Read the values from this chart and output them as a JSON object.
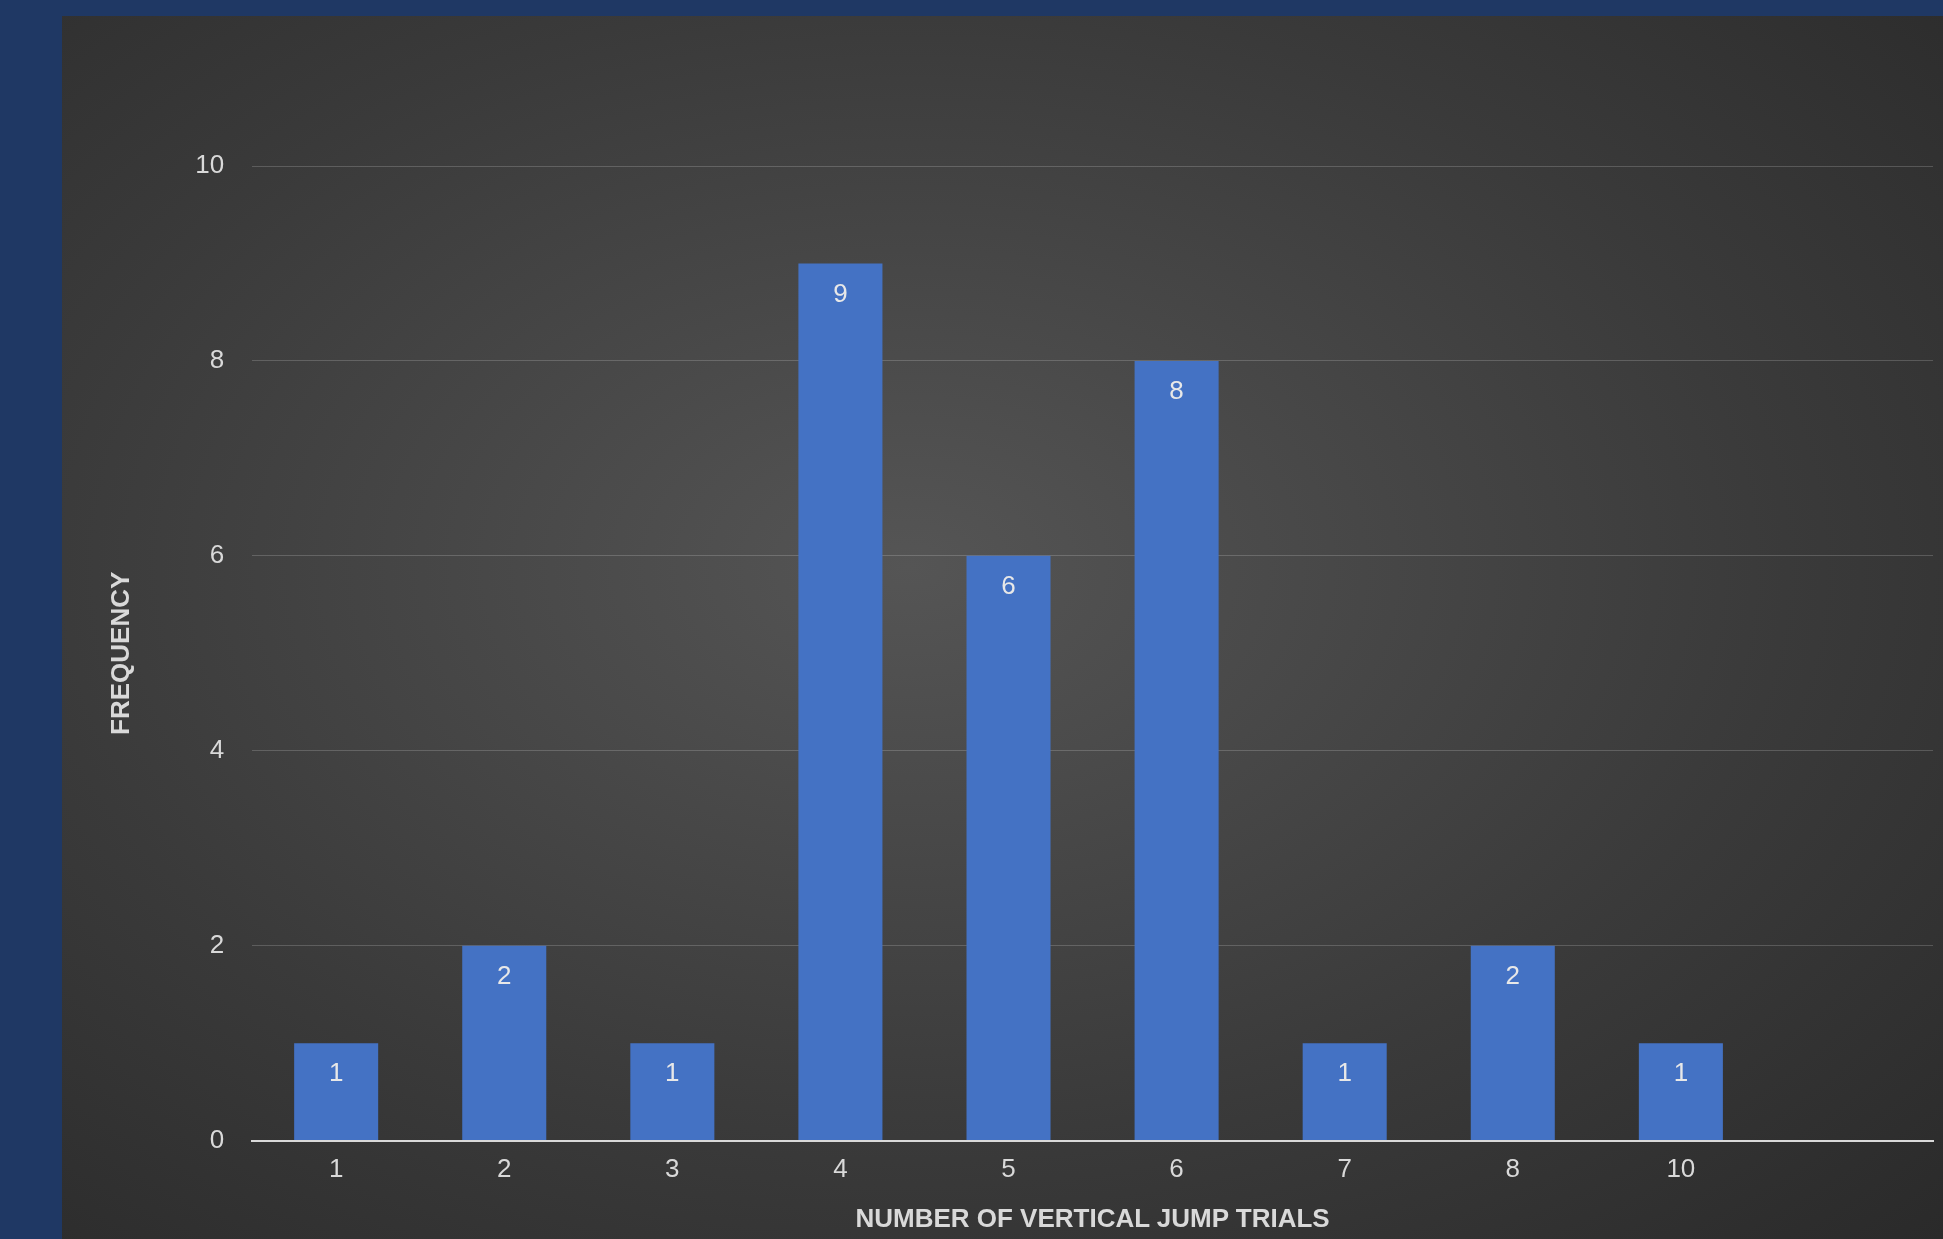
{
  "chart_data": {
    "type": "bar",
    "xlabel": "NUMBER OF VERTICAL JUMP TRIALS",
    "ylabel": "FREQUENCY",
    "categories": [
      "1",
      "2",
      "3",
      "4",
      "5",
      "6",
      "7",
      "8",
      "10",
      null
    ],
    "values": [
      1,
      2,
      1,
      9,
      6,
      8,
      1,
      2,
      1,
      null
    ],
    "color": "#4472c4",
    "ylim": [
      0,
      10
    ],
    "yticks": [
      0,
      2,
      4,
      6,
      8,
      10
    ],
    "grid": "y",
    "legend": false,
    "data_labels": true
  }
}
